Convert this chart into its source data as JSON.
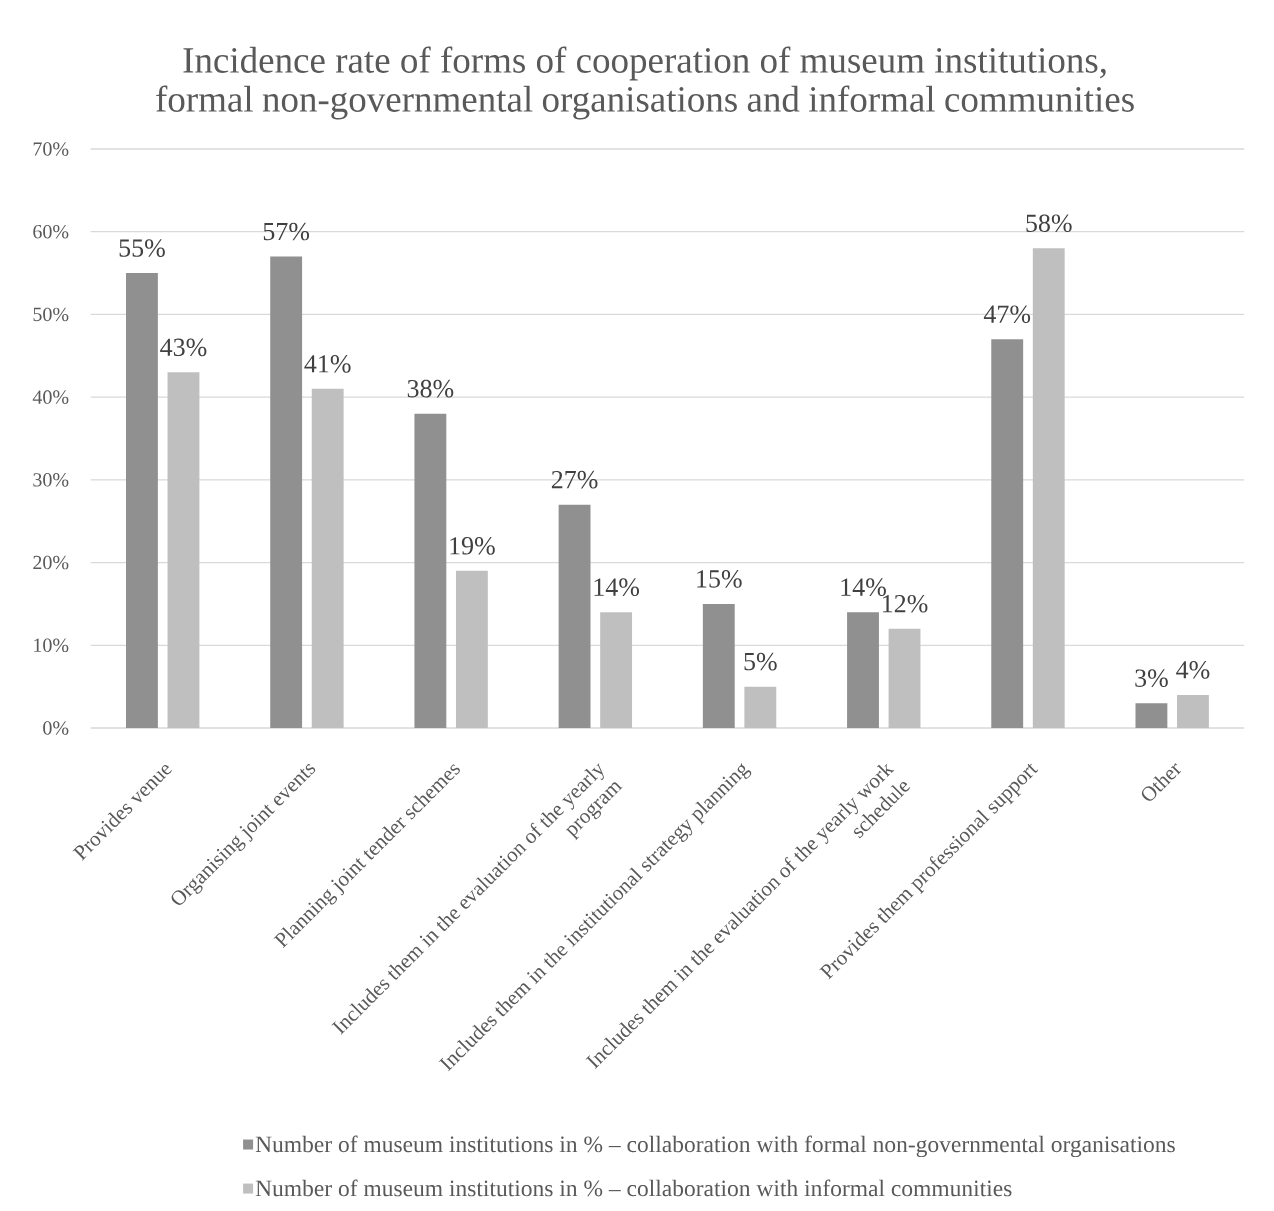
{
  "chart_data": {
    "type": "bar",
    "title": "Incidence rate of forms of cooperation of museum institutions, formal non-governmental organisations and informal communities",
    "categories": [
      "Provides venue",
      "Organising joint events",
      "Planning joint tender schemes",
      "Includes them in the evaluation of the yearly program",
      "Includes them in the institutional strategy planning",
      "Includes them in the evaluation of the yearly work schedule",
      "Provides them professional support",
      "Other"
    ],
    "series": [
      {
        "name": "Number of museum institutions in % – collaboration with formal non-governmental organisations",
        "color": "#909090",
        "values": [
          55,
          57,
          38,
          27,
          15,
          14,
          47,
          3
        ],
        "value_labels": [
          "55%",
          "57%",
          "38%",
          "27%",
          "15%",
          "14%",
          "47%",
          "3%"
        ]
      },
      {
        "name": "Number of museum institutions in % – collaboration with informal communities",
        "color": "#bfbfbf",
        "values": [
          43,
          41,
          19,
          14,
          5,
          12,
          58,
          4
        ],
        "value_labels": [
          "43%",
          "41%",
          "19%",
          "14%",
          "5%",
          "12%",
          "58%",
          "4%"
        ]
      }
    ],
    "ylim": [
      0,
      70
    ],
    "yticks": [
      {
        "value": 0,
        "label": "0%"
      },
      {
        "value": 10,
        "label": "10%"
      },
      {
        "value": 20,
        "label": "20%"
      },
      {
        "value": 30,
        "label": "30%"
      },
      {
        "value": 40,
        "label": "40%"
      },
      {
        "value": 50,
        "label": "50%"
      },
      {
        "value": 60,
        "label": "60%"
      },
      {
        "value": 70,
        "label": "70%"
      }
    ],
    "grid": "y",
    "legend": "bottom"
  }
}
